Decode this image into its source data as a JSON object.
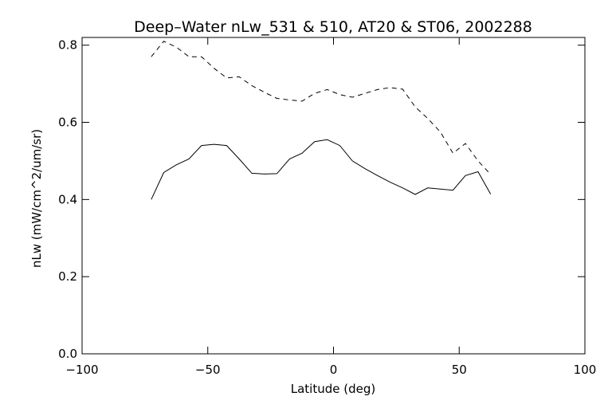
{
  "chart_data": {
    "type": "line",
    "title": "Deep–Water nLw_531 & 510, AT20 & ST06, 2002288",
    "xlabel": "Latitude (deg)",
    "ylabel": "nLw (mW/cm^2/um/sr)",
    "xlim": [
      -100,
      100
    ],
    "ylim": [
      0.0,
      0.82
    ],
    "xticks": [
      -100,
      -50,
      0,
      50,
      100
    ],
    "xtick_labels": [
      "−100",
      "−50",
      "0",
      "50",
      "100"
    ],
    "yticks": [
      0.0,
      0.2,
      0.4,
      0.6,
      0.8
    ],
    "ytick_labels": [
      "0.0",
      "0.2",
      "0.4",
      "0.6",
      "0.8"
    ],
    "grid": false,
    "series": [
      {
        "style": "solid",
        "x": [
          -72.5,
          -67.5,
          -62.5,
          -57.5,
          -52.5,
          -47.5,
          -42.5,
          -37.5,
          -32.5,
          -27.5,
          -22.5,
          -17.5,
          -12.5,
          -7.5,
          -2.5,
          2.5,
          7.5,
          12.5,
          17.5,
          22.5,
          27.5,
          32.5,
          37.5,
          42.5,
          47.5,
          52.5,
          57.5,
          62.5
        ],
        "y": [
          0.4,
          0.47,
          0.49,
          0.505,
          0.54,
          0.543,
          0.54,
          0.505,
          0.468,
          0.466,
          0.467,
          0.505,
          0.52,
          0.55,
          0.555,
          0.54,
          0.5,
          0.48,
          0.462,
          0.445,
          0.43,
          0.413,
          0.43,
          0.427,
          0.424,
          0.462,
          0.472,
          0.414
        ]
      },
      {
        "style": "dashed",
        "x": [
          -72.5,
          -67.5,
          -62.5,
          -57.5,
          -52.5,
          -47.5,
          -42.5,
          -37.5,
          -32.5,
          -27.5,
          -22.5,
          -17.5,
          -12.5,
          -7.5,
          -2.5,
          2.5,
          7.5,
          12.5,
          17.5,
          22.5,
          27.5,
          32.5,
          37.5,
          42.5,
          47.5,
          52.5,
          57.5,
          62.5
        ],
        "y": [
          0.77,
          0.81,
          0.795,
          0.77,
          0.77,
          0.74,
          0.715,
          0.718,
          0.695,
          0.678,
          0.662,
          0.658,
          0.655,
          0.675,
          0.685,
          0.672,
          0.665,
          0.675,
          0.685,
          0.69,
          0.686,
          0.64,
          0.61,
          0.575,
          0.52,
          0.545,
          0.5,
          0.465
        ]
      }
    ]
  }
}
